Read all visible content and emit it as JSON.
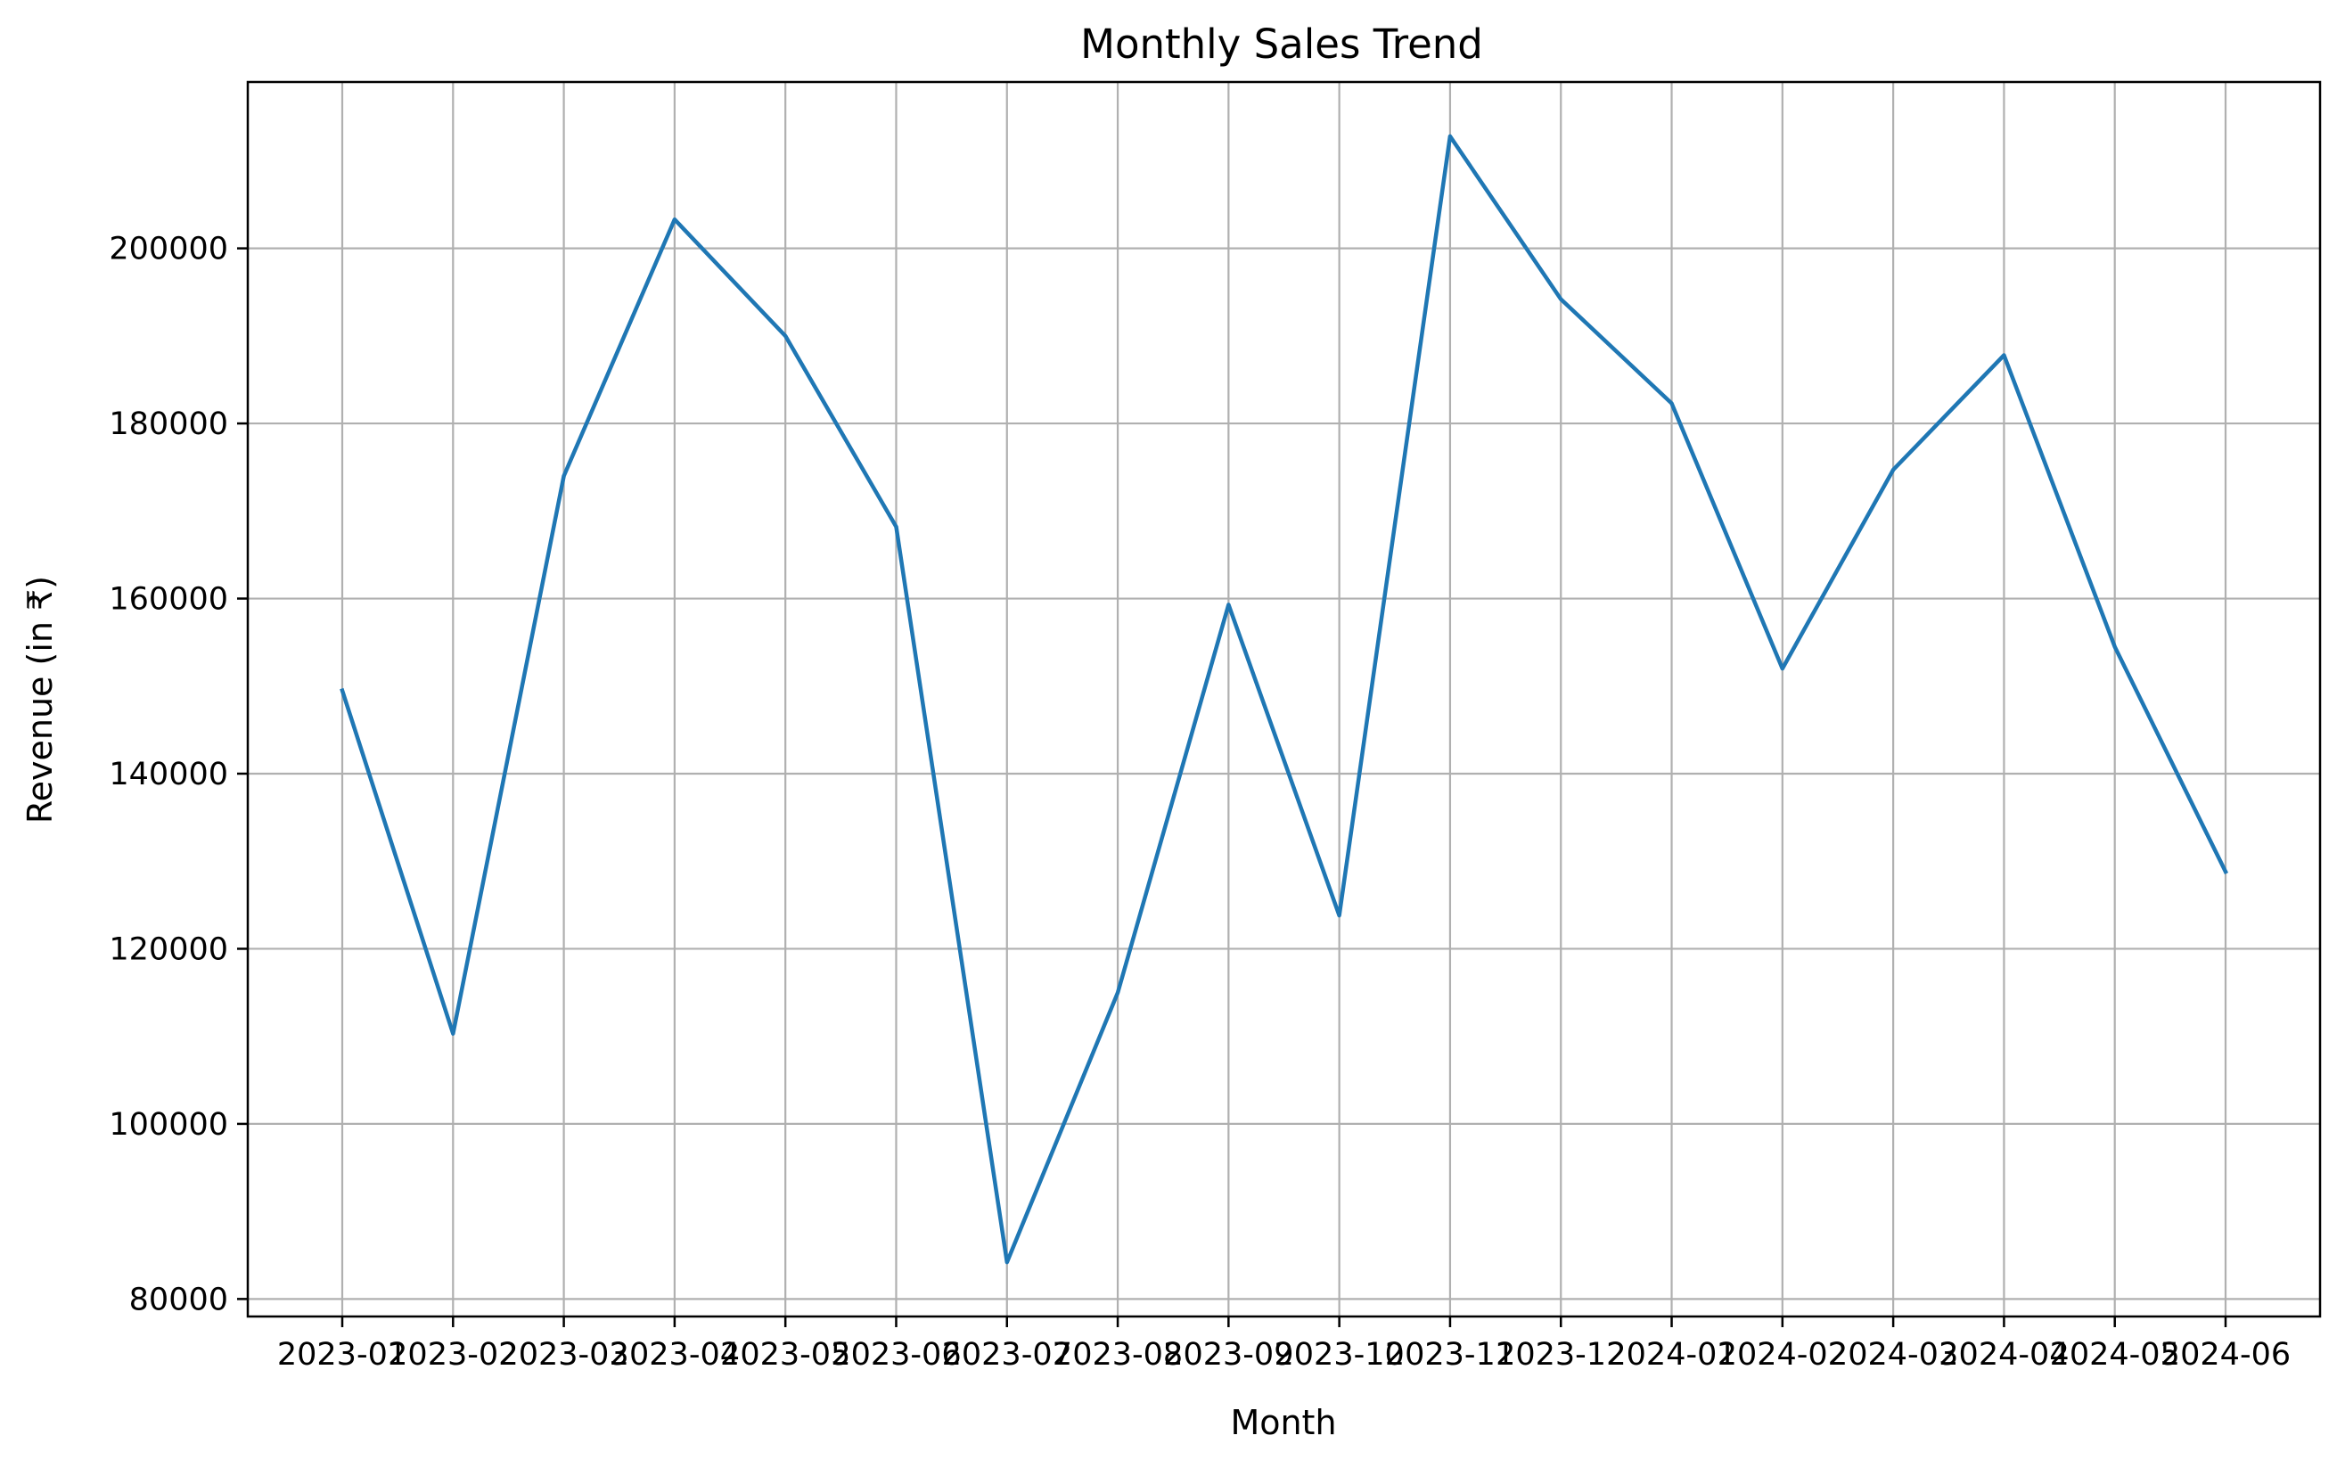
{
  "chart_data": {
    "type": "line",
    "title": "Monthly Sales Trend",
    "xlabel": "Month",
    "ylabel": "Revenue (in ₹)",
    "categories": [
      "2023-01",
      "2023-02",
      "2023-03",
      "2023-04",
      "2023-05",
      "2023-06",
      "2023-07",
      "2023-08",
      "2023-09",
      "2023-10",
      "2023-11",
      "2023-12",
      "2024-01",
      "2024-02",
      "2024-03",
      "2024-04",
      "2024-05",
      "2024-06"
    ],
    "series": [
      {
        "values": [
          149500,
          110300,
          174000,
          203300,
          190000,
          168200,
          84200,
          115000,
          159300,
          123800,
          212800,
          194200,
          182300,
          152000,
          174700,
          187800,
          154500,
          128800
        ],
        "color": "#1f77b4"
      }
    ],
    "yticks": [
      80000,
      100000,
      120000,
      140000,
      160000,
      180000,
      200000
    ],
    "ylim": [
      78000,
      219000
    ],
    "grid": true,
    "legend": "none"
  }
}
